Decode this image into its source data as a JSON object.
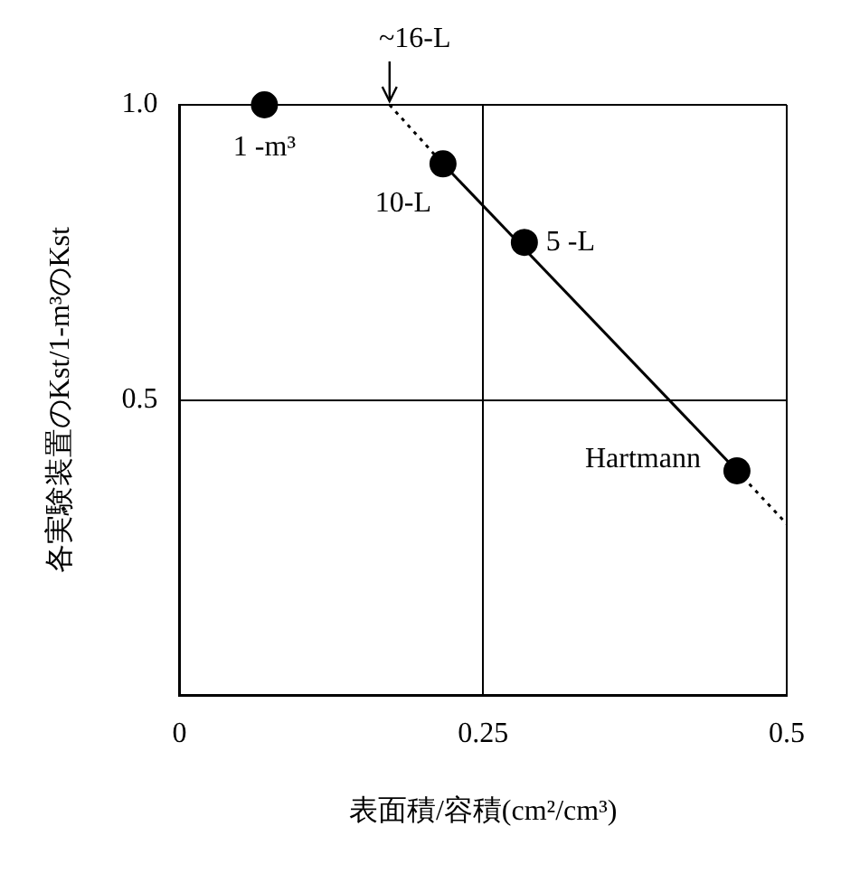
{
  "chart_data": {
    "type": "scatter",
    "xlabel": "表面積/容積(cm²/cm³)",
    "ylabel": "各実験装置のKst/1-m³のKst",
    "xlim": [
      0,
      0.5
    ],
    "xticks": [
      0,
      0.25,
      0.5
    ],
    "ylim": [
      0,
      1
    ],
    "yticks": [
      {
        "value": 0,
        "label": null
      },
      0.5,
      {
        "value": 1,
        "label": "1.0"
      }
    ],
    "grid": true,
    "legend": false,
    "series": [
      {
        "type": "line",
        "color": "#000000",
        "x": [
          0.217,
          0.459
        ],
        "values": [
          0.9,
          0.38
        ],
        "marker": "none",
        "line_style": "solid"
      },
      {
        "type": "line",
        "color": "#000000",
        "x": [
          0.173,
          0.217
        ],
        "values": [
          1,
          0.9
        ],
        "marker": "none",
        "line_style": "dotted"
      },
      {
        "type": "line",
        "color": "#000000",
        "x": [
          0.459,
          0.5
        ],
        "values": [
          0.38,
          0.29
        ],
        "marker": "none",
        "line_style": "dotted"
      },
      {
        "type": "scatter",
        "color": "#000000",
        "x": [
          0.07,
          0.217,
          0.284,
          0.459
        ],
        "values": [
          1,
          0.9,
          0.767,
          0.38
        ],
        "marker": "circle"
      }
    ],
    "annotations": [
      {
        "text": "1 -m³",
        "x": 0.07,
        "y": 1
      },
      {
        "text": "10-L",
        "x": 0.217,
        "y": 0.9
      },
      {
        "text": "5 -L",
        "x": 0.284,
        "y": 0.767
      },
      {
        "text": "Hartmann",
        "x": 0.459,
        "y": 0.38
      },
      {
        "text": "~16-L",
        "x": 0.173,
        "y": 1
      }
    ]
  }
}
